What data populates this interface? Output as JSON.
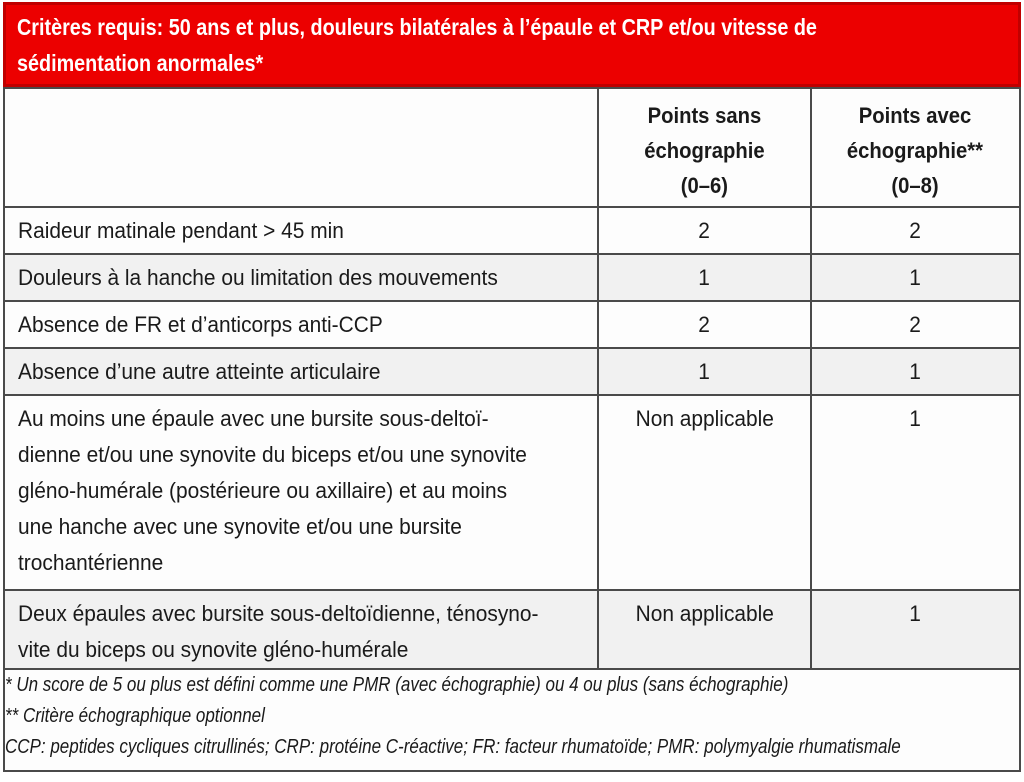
{
  "banner": {
    "title": "Critères requis: 50 ans et plus, douleurs bilatérales à l’épaule et CRP et/ou vitesse de\nsédimentation anormales*",
    "background_color": "#ec0000",
    "border_color": "#c00000",
    "text_color": "#ffffff"
  },
  "table": {
    "columns": {
      "criterion_header": "",
      "points_sans": "Points sans\néchographie\n(0–6)",
      "points_avec": "Points avec\néchographie**\n(0–8)"
    },
    "rows": [
      {
        "label": "Raideur matinale pendant > 45 min",
        "sans": "2",
        "avec": "2"
      },
      {
        "label": "Douleurs à la hanche ou limitation des mouvements",
        "sans": "1",
        "avec": "1"
      },
      {
        "label": "Absence de FR et d’anticorps anti-CCP",
        "sans": "2",
        "avec": "2"
      },
      {
        "label": "Absence d’une autre atteinte articulaire",
        "sans": "1",
        "avec": "1"
      },
      {
        "label": "Au moins une épaule avec une bursite sous-deltoï-\ndienne et/ou une synovite du biceps et/ou une synovite\ngléno-humérale (postérieure ou axillaire) et au moins\nune hanche avec une synovite et/ou une bursite\ntrochantérienne",
        "sans": "Non applicable",
        "avec": "1"
      },
      {
        "label": "Deux épaules avec bursite sous-deltoïdienne, ténosyno-\nvite du biceps ou synovite gléno-humérale",
        "sans": "Non applicable",
        "avec": "1"
      }
    ],
    "footnotes": [
      "* Un score de 5 ou plus est défini comme une PMR (avec échographie) ou 4 ou plus (sans échographie)",
      "** Critère échographique optionnel",
      "CCP: peptides cycliques citrullinés; CRP: protéine C-réactive; FR: facteur rhumatoïde; PMR: polymyalgie rhumatismale"
    ],
    "border_color": "#4a4a4a",
    "alt_row_color": "#f1f1f1"
  }
}
